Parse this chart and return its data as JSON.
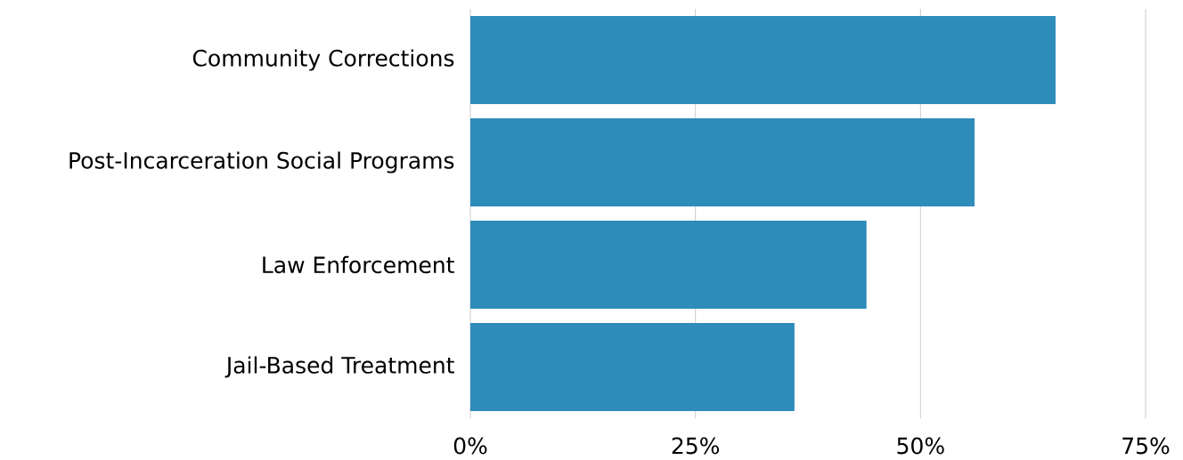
{
  "chart_data": {
    "type": "bar",
    "orientation": "horizontal",
    "categories": [
      "Community Corrections",
      "Post-Incarceration Social Programs",
      "Law Enforcement",
      "Jail-Based Treatment"
    ],
    "values": [
      65,
      56,
      44,
      36
    ],
    "color": "#2e8cba",
    "xlim": [
      0,
      75
    ],
    "xticks": [
      {
        "value": 0,
        "label": "0%"
      },
      {
        "value": 25,
        "label": "25%"
      },
      {
        "value": 50,
        "label": "50%"
      },
      {
        "value": 75,
        "label": "75%"
      }
    ],
    "grid": "x"
  }
}
